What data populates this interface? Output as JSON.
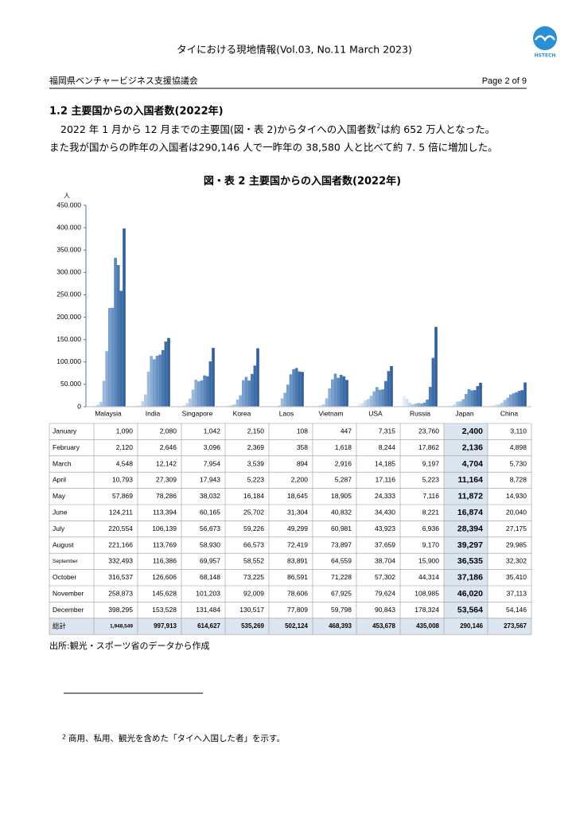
{
  "header": {
    "title": "タイにおける現地情報(Vol.03, No.11 March 2023)",
    "logo": "HSTECH",
    "org": "福岡県ベンチャービジネス支援協議会",
    "page": "Page 2 of 9"
  },
  "section": {
    "heading": "1.2 主要国からの入国者数(2022年)",
    "line1_a": "2022 年 1 月から 12 月までの主要国(図・表 2)からタイへの入国者数",
    "line1_ref": "2",
    "line1_b": "は約 652 万人となった。",
    "line2": "また我が国からの昨年の入国者は290,146 人で一昨年の 38,580 人と比べて約 7. 5 倍に増加した。"
  },
  "chart_data": {
    "type": "bar",
    "title": "図・表 2 主要国からの入国者数(2022年)",
    "y_label": "人",
    "categories": [
      "Malaysia",
      "India",
      "Singapore",
      "Korea",
      "Laos",
      "Vietnam",
      "USA",
      "Russia",
      "Japan",
      "China"
    ],
    "ylim": [
      0,
      450000
    ],
    "yticks": [
      0,
      {
        "value": 50000,
        "label": "50.000"
      },
      {
        "value": 100000,
        "label": "100.000"
      },
      {
        "value": 150000,
        "label": "150.000"
      },
      {
        "value": 200000,
        "label": "200.000"
      },
      {
        "value": 250000,
        "label": "250.000"
      },
      {
        "value": 300000,
        "label": "300.000"
      },
      {
        "value": 350000,
        "label": "350.000"
      },
      {
        "value": 400000,
        "label": "400.000"
      },
      {
        "value": 450000,
        "label": "450.000"
      }
    ],
    "series": [
      {
        "name": "January",
        "color": "#e4edf7",
        "values": [
          1090,
          2080,
          1042,
          2150,
          108,
          447,
          7315,
          23760,
          2400,
          3110
        ],
        "value_labels": [
          "1,090",
          "2,080",
          "1,042",
          "2,150",
          "108",
          "447",
          "7,315",
          "23,760",
          "2,400",
          "3,110"
        ]
      },
      {
        "name": "February",
        "color": "#d3e1f1",
        "values": [
          2120,
          2646,
          3096,
          2369,
          358,
          1618,
          8244,
          17862,
          2136,
          4898
        ],
        "value_labels": [
          "2,120",
          "2,646",
          "3,096",
          "2,369",
          "358",
          "1,618",
          "8,244",
          "17,862",
          "2,136",
          "4,898"
        ]
      },
      {
        "name": "March",
        "color": "#c1d5ea",
        "values": [
          4548,
          12142,
          7954,
          3539,
          894,
          2916,
          14185,
          9197,
          4704,
          5730
        ],
        "value_labels": [
          "4,548",
          "12,142",
          "7,954",
          "3,539",
          "894",
          "2,916",
          "14,185",
          "9,197",
          "4,704",
          "5,730"
        ]
      },
      {
        "name": "April",
        "color": "#afc8e3",
        "values": [
          10793,
          27309,
          17943,
          5223,
          2200,
          5287,
          17116,
          5223,
          11164,
          8728
        ],
        "value_labels": [
          "10,793",
          "27,309",
          "17,943",
          "5,223",
          "2,200",
          "5,287",
          "17,116",
          "5,223",
          "11,164",
          "8,728"
        ]
      },
      {
        "name": "May",
        "color": "#9dbbdc",
        "values": [
          57869,
          78286,
          38032,
          16184,
          18645,
          18905,
          24333,
          7116,
          11872,
          14930
        ],
        "value_labels": [
          "57,869",
          "78,286",
          "38,032",
          "16,184",
          "18,645",
          "18,905",
          "24,333",
          "7,116",
          "11,872",
          "14,930"
        ]
      },
      {
        "name": "June",
        "color": "#8baed4",
        "values": [
          124211,
          113394,
          60165,
          25702,
          31304,
          40832,
          34430,
          8221,
          16874,
          20040
        ],
        "value_labels": [
          "124,211",
          "113,394",
          "60,165",
          "25,702",
          "31,304",
          "40,832",
          "34,430",
          "8,221",
          "16,874",
          "20,040"
        ]
      },
      {
        "name": "July",
        "color": "#79a0cc",
        "values": [
          220554,
          106139,
          56673,
          59226,
          49299,
          60981,
          43923,
          6936,
          28394,
          27175
        ],
        "value_labels": [
          "220,554",
          "106,139",
          "56,673",
          "59,226",
          "49,299",
          "60,981",
          "43,923",
          "6,936",
          "28,394",
          "27,175"
        ]
      },
      {
        "name": "August",
        "color": "#6893c3",
        "values": [
          221166,
          113769,
          58930,
          66573,
          72419,
          73897,
          37659,
          9170,
          39297,
          29985
        ],
        "value_labels": [
          "221,166",
          "113,769",
          "58,930",
          "66,573",
          "72,419",
          "73,897",
          "37,659",
          "9,170",
          "39,297",
          "29,985"
        ]
      },
      {
        "name": "September",
        "color": "#5886ba",
        "values": [
          332493,
          116386,
          69957,
          58552,
          83891,
          64559,
          38704,
          15900,
          36535,
          32302
        ],
        "value_labels": [
          "332,493",
          "116,386",
          "69,957",
          "58,552",
          "83,891",
          "64,559",
          "38,704",
          "15,900",
          "36,535",
          "32,302"
        ]
      },
      {
        "name": "October",
        "color": "#4a79b0",
        "values": [
          316537,
          126606,
          68148,
          73225,
          86591,
          71228,
          57302,
          44314,
          37186,
          35410
        ],
        "value_labels": [
          "316,537",
          "126,606",
          "68,148",
          "73,225",
          "86,591",
          "71,228",
          "57,302",
          "44,314",
          "37,186",
          "35,410"
        ]
      },
      {
        "name": "November",
        "color": "#3d6ca6",
        "values": [
          258873,
          145628,
          101203,
          92009,
          78606,
          67925,
          79624,
          108985,
          46020,
          37113
        ],
        "value_labels": [
          "258,873",
          "145,628",
          "101,203",
          "92,009",
          "78,606",
          "67,925",
          "79,624",
          "108,985",
          "46,020",
          "37,113"
        ]
      },
      {
        "name": "December",
        "color": "#31609c",
        "values": [
          398295,
          153528,
          131484,
          130517,
          77809,
          59798,
          90843,
          178324,
          53564,
          54146
        ],
        "value_labels": [
          "398,295",
          "153,528",
          "131,484",
          "130,517",
          "77,809",
          "59,798",
          "90,843",
          "178,324",
          "53,564",
          "54,146"
        ]
      }
    ]
  },
  "table": {
    "total_label": "総計",
    "totals": [
      "1,948,549",
      "997,913",
      "614,627",
      "535,269",
      "502,124",
      "468,393",
      "453,678",
      "435,008",
      "290,146",
      "273,567"
    ],
    "highlight_column": "Japan"
  },
  "source": "出所:観光・スポーツ省のデータから作成",
  "footnote": {
    "number": "2",
    "text": "商用、私用、観光を含めた「タイへ入国した者」を示す。"
  }
}
